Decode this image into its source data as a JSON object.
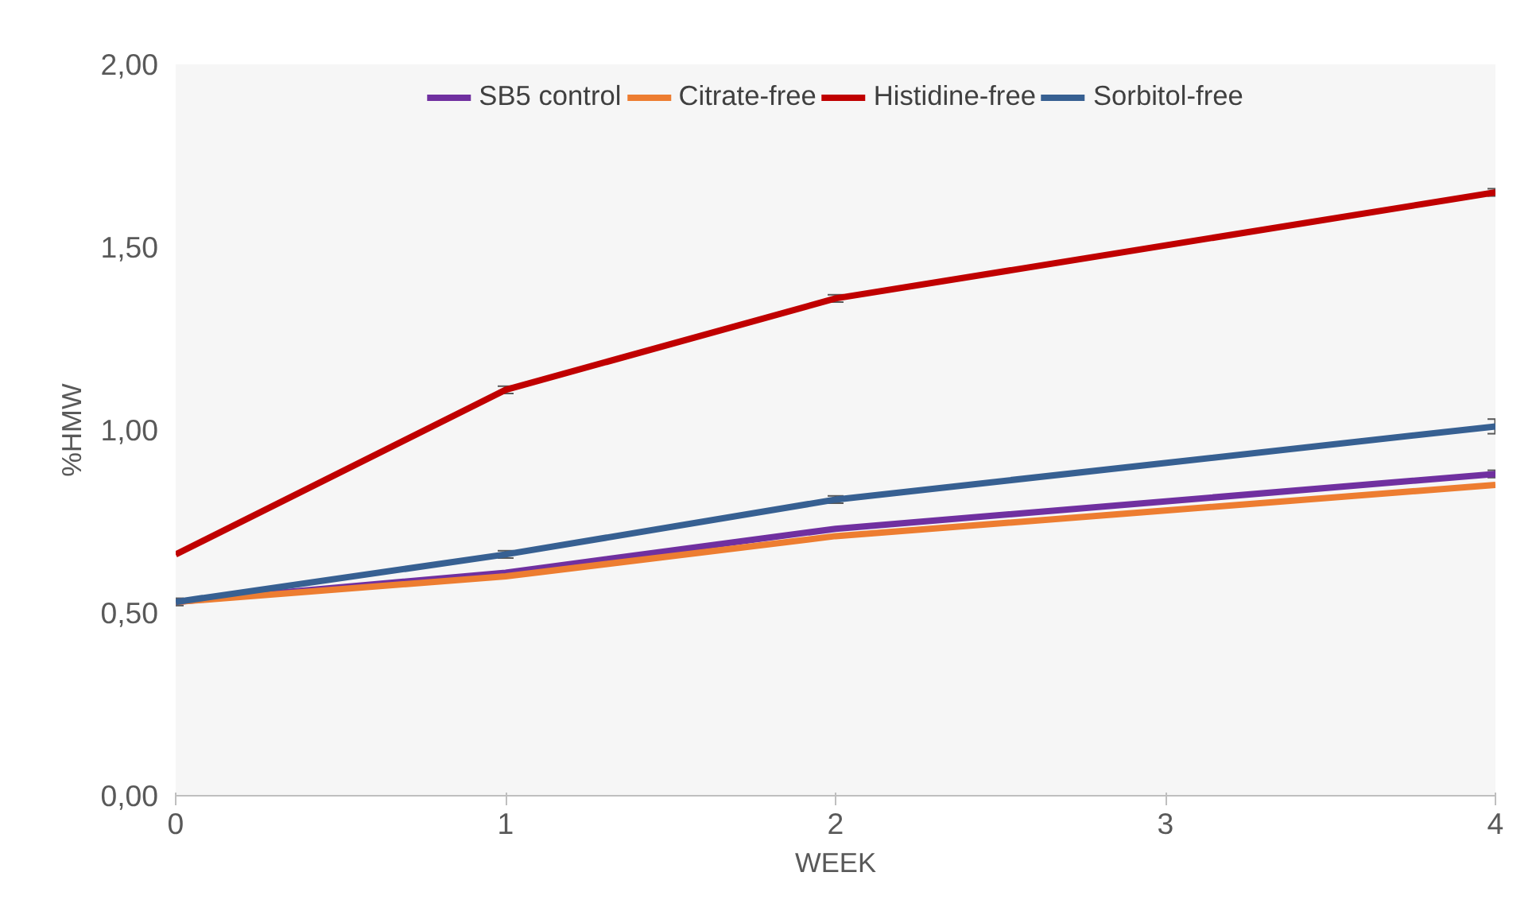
{
  "chart_data": {
    "type": "line",
    "xlabel": "WEEK",
    "ylabel": "%HMW",
    "x": [
      0,
      1,
      2,
      4
    ],
    "xlim": [
      0,
      4
    ],
    "xticks": [
      0,
      1,
      2,
      3,
      4
    ],
    "ylim": [
      0,
      2
    ],
    "yticks": [
      {
        "value": 0,
        "label": "0,00"
      },
      {
        "value": 0.5,
        "label": "0,50"
      },
      {
        "value": 1,
        "label": "1,00"
      },
      {
        "value": 1.5,
        "label": "1,50"
      },
      {
        "value": 2,
        "label": "2,00"
      }
    ],
    "series": [
      {
        "name": "SB5 control",
        "color": "#7030a0",
        "values": [
          0.53,
          0.61,
          0.73,
          0.88
        ],
        "errors": [
          null,
          null,
          null,
          0.01
        ]
      },
      {
        "name": "Citrate-free",
        "color": "#ed7d31",
        "values": [
          0.53,
          0.6,
          0.71,
          0.85
        ]
      },
      {
        "name": "Histidine-free",
        "color": "#c00000",
        "values": [
          0.66,
          1.11,
          1.36,
          1.65
        ],
        "errors": [
          null,
          0.01,
          0.01,
          0.01
        ]
      },
      {
        "name": "Sorbitol-free",
        "color": "#376092",
        "values": [
          0.53,
          0.66,
          0.81,
          1.01
        ],
        "errors": [
          0.01,
          0.01,
          0.01,
          0.02
        ]
      }
    ],
    "legend": "top",
    "grid": false,
    "marker": "none",
    "line_style": "solid"
  }
}
